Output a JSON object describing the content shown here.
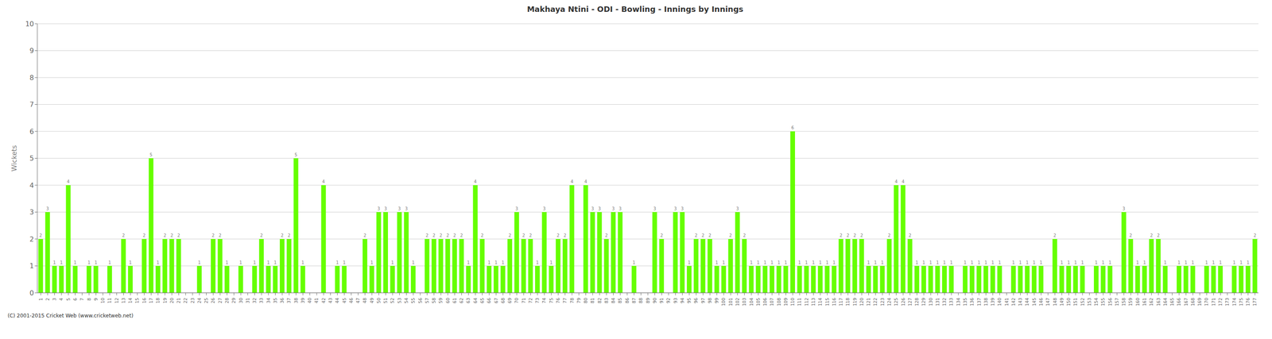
{
  "chart_data": {
    "type": "bar",
    "title": "Makhaya Ntini - ODI - Bowling - Innings by Innings",
    "ylabel": "Wickets",
    "annotations": [
      "(C) 2001-2015 Cricket Web (www.cricketweb.net)"
    ],
    "color": "#66ff00",
    "grid": true,
    "data_labels": true,
    "ylim": [
      0,
      10
    ],
    "yticks": [
      0,
      1,
      2,
      3,
      4,
      5,
      6,
      7,
      8,
      9,
      10
    ],
    "categories": [
      "1",
      "2",
      "3",
      "4",
      "5",
      "6",
      "7",
      "8",
      "9",
      "10",
      "11",
      "12",
      "13",
      "14",
      "15",
      "16",
      "17",
      "18",
      "19",
      "20",
      "21",
      "22",
      "23",
      "24",
      "25",
      "26",
      "27",
      "28",
      "29",
      "30",
      "31",
      "32",
      "33",
      "34",
      "35",
      "36",
      "37",
      "38",
      "39",
      "40",
      "41",
      "42",
      "43",
      "44",
      "45",
      "46",
      "47",
      "48",
      "49",
      "50",
      "51",
      "52",
      "53",
      "54",
      "55",
      "56",
      "57",
      "58",
      "59",
      "60",
      "61",
      "62",
      "63",
      "64",
      "65",
      "66",
      "67",
      "68",
      "69",
      "70",
      "71",
      "72",
      "73",
      "74",
      "75",
      "76",
      "77",
      "78",
      "79",
      "80",
      "81",
      "82",
      "83",
      "84",
      "85",
      "86",
      "87",
      "88",
      "89",
      "90",
      "91",
      "92",
      "93",
      "94",
      "95",
      "96",
      "97",
      "98",
      "99",
      "100",
      "101",
      "102",
      "103",
      "104",
      "105",
      "106",
      "107",
      "108",
      "109",
      "110",
      "111",
      "112",
      "113",
      "114",
      "115",
      "116",
      "117",
      "118",
      "119",
      "120",
      "121",
      "122",
      "123",
      "124",
      "125",
      "126",
      "127",
      "128",
      "129",
      "130",
      "131",
      "132",
      "133",
      "134",
      "135",
      "136",
      "137",
      "138",
      "139",
      "140",
      "141",
      "142",
      "143",
      "144",
      "145",
      "146",
      "147",
      "148",
      "149",
      "150",
      "151",
      "152",
      "153",
      "154",
      "155",
      "156",
      "157",
      "158",
      "159",
      "160",
      "161",
      "162",
      "163",
      "164",
      "165",
      "166",
      "167",
      "168",
      "169",
      "170",
      "171",
      "172",
      "173",
      "174",
      "175",
      "176",
      "177"
    ],
    "values": [
      2,
      3,
      1,
      1,
      4,
      1,
      0,
      1,
      1,
      0,
      1,
      0,
      2,
      1,
      0,
      2,
      5,
      1,
      2,
      2,
      2,
      0,
      0,
      1,
      0,
      2,
      2,
      1,
      0,
      1,
      0,
      1,
      2,
      1,
      1,
      2,
      2,
      5,
      1,
      0,
      0,
      4,
      0,
      1,
      1,
      0,
      0,
      2,
      1,
      3,
      3,
      1,
      3,
      3,
      1,
      0,
      2,
      2,
      2,
      2,
      2,
      2,
      1,
      4,
      2,
      1,
      1,
      1,
      2,
      3,
      2,
      2,
      1,
      3,
      1,
      2,
      2,
      4,
      0,
      4,
      3,
      3,
      2,
      3,
      3,
      0,
      1,
      0,
      0,
      3,
      2,
      0,
      3,
      3,
      1,
      2,
      2,
      2,
      1,
      1,
      2,
      3,
      2,
      1,
      1,
      1,
      1,
      1,
      1,
      6,
      1,
      1,
      1,
      1,
      1,
      1,
      2,
      2,
      2,
      2,
      1,
      1,
      1,
      2,
      4,
      4,
      2,
      1,
      1,
      1,
      1,
      1,
      1,
      0,
      1,
      1,
      1,
      1,
      1,
      1,
      0,
      1,
      1,
      1,
      1,
      1,
      0,
      2,
      1,
      1,
      1,
      1,
      0,
      1,
      1,
      1,
      0,
      3,
      2,
      1,
      1,
      2,
      2,
      1,
      0,
      1,
      1,
      1,
      0,
      1,
      1,
      1,
      0,
      1,
      1,
      1,
      2
    ]
  }
}
